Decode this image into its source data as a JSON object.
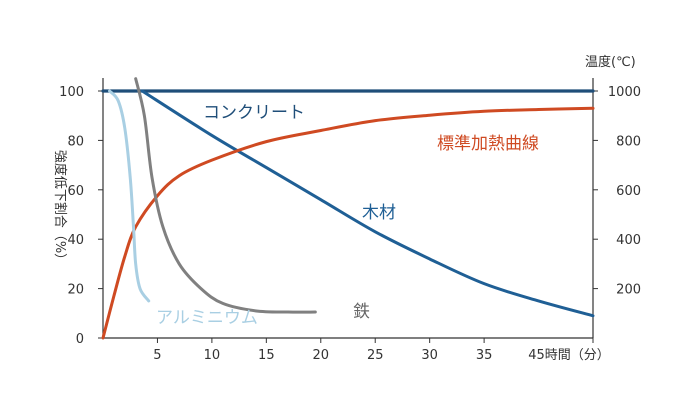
{
  "chart_data": {
    "type": "line",
    "xlabel": "時間（分）",
    "ylabel_left": "強度低下割合（%）",
    "ylabel_right": "温度(℃)",
    "xlim": [
      0,
      45
    ],
    "ylim_left": [
      0,
      100
    ],
    "ylim_right": [
      0,
      1000
    ],
    "x_ticks": [
      "5",
      "10",
      "15",
      "20",
      "25",
      "30",
      "35",
      "45時間（分）"
    ],
    "y_left_ticks": [
      "100",
      "80",
      "60",
      "40",
      "20",
      "0"
    ],
    "y_right_ticks": [
      "1000",
      "800",
      "600",
      "400",
      "200"
    ],
    "grid": false,
    "series": [
      {
        "name": "コンクリート",
        "axis": "left",
        "color": "#1f4e79",
        "x": [
          0,
          45
        ],
        "y": [
          100,
          100
        ]
      },
      {
        "name": "木材",
        "axis": "left",
        "color": "#1f5f95",
        "x": [
          3.6,
          10,
          15,
          20,
          25,
          30,
          35,
          40,
          45
        ],
        "y": [
          100,
          82,
          69,
          56,
          43,
          32,
          22,
          15,
          9
        ]
      },
      {
        "name": "標準加熱曲線",
        "axis": "right",
        "color": "#cf4a22",
        "x": [
          0,
          1,
          2,
          3,
          5,
          7,
          10,
          15,
          20,
          25,
          30,
          35,
          40,
          45
        ],
        "y": [
          0,
          170,
          330,
          450,
          576,
          657,
          720,
          795,
          840,
          880,
          902,
          918,
          925,
          930
        ]
      },
      {
        "name": "アルミニウム",
        "axis": "left",
        "color": "#a9cfe3",
        "x": [
          0.6,
          1.4,
          2,
          2.5,
          2.8,
          3,
          3.4,
          4.2
        ],
        "y": [
          100,
          96,
          85,
          65,
          45,
          30,
          20,
          15
        ]
      },
      {
        "name": "鉄",
        "axis": "left",
        "color": "#808080",
        "x": [
          3,
          3.8,
          4.5,
          5.5,
          7,
          9,
          11,
          14,
          17,
          19.5
        ],
        "y": [
          105,
          90,
          65,
          45,
          30,
          20,
          14,
          11,
          10.5,
          10.5
        ]
      }
    ]
  }
}
